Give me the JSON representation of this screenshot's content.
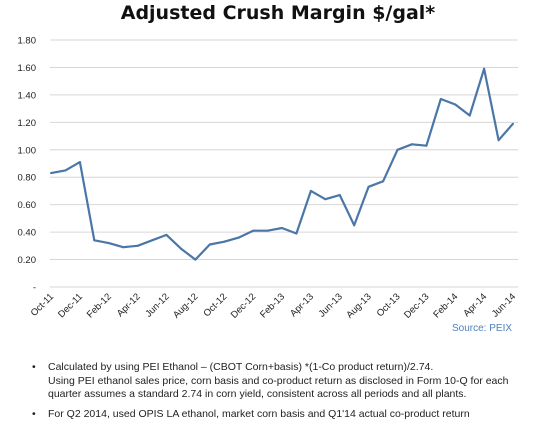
{
  "title": "Adjusted Crush Margin $/gal*",
  "source": "Source: PEIX",
  "footnotes": [
    [
      "Calculated by using PEI Ethanol – (CBOT Corn+basis) *(1-Co product return)/2.74.",
      "Using PEI ethanol sales price, corn basis and co-product return as disclosed in Form 10-Q for each",
      "quarter assumes a standard 2.74 in corn yield, consistent across all periods and all plants."
    ],
    [
      "For Q2 2014, used OPIS LA ethanol, market corn basis and Q1'14 actual co-product return"
    ]
  ],
  "colors": {
    "line": "#4a76a8",
    "grid": "#d6d6d6",
    "source": "#4f81bd"
  },
  "chart_data": {
    "type": "line",
    "title": "Adjusted Crush Margin $/gal*",
    "xlabel": "",
    "ylabel": "",
    "ylim": [
      0,
      1.8
    ],
    "y_ticks": [
      "-",
      "0.20",
      "0.40",
      "0.60",
      "0.80",
      "1.00",
      "1.20",
      "1.40",
      "1.60",
      "1.80"
    ],
    "grid": true,
    "x_tick_labels": [
      "Oct-11",
      "Dec-11",
      "Feb-12",
      "Apr-12",
      "Jun-12",
      "Aug-12",
      "Oct-12",
      "Dec-12",
      "Feb-13",
      "Apr-13",
      "Jun-13",
      "Aug-13",
      "Oct-13",
      "Dec-13",
      "Feb-14",
      "Apr-14",
      "Jun-14"
    ],
    "x": [
      "Oct-11",
      "Nov-11",
      "Dec-11",
      "Jan-12",
      "Feb-12",
      "Mar-12",
      "Apr-12",
      "May-12",
      "Jun-12",
      "Jul-12",
      "Aug-12",
      "Sep-12",
      "Oct-12",
      "Nov-12",
      "Dec-12",
      "Jan-13",
      "Feb-13",
      "Mar-13",
      "Apr-13",
      "May-13",
      "Jun-13",
      "Jul-13",
      "Aug-13",
      "Sep-13",
      "Oct-13",
      "Nov-13",
      "Dec-13",
      "Jan-14",
      "Feb-14",
      "Mar-14",
      "Apr-14",
      "May-14",
      "Jun-14"
    ],
    "series": [
      {
        "values": [
          0.83,
          0.85,
          0.91,
          0.34,
          0.32,
          0.29,
          0.3,
          0.34,
          0.38,
          0.28,
          0.2,
          0.31,
          0.33,
          0.36,
          0.41,
          0.41,
          0.43,
          0.39,
          0.7,
          0.64,
          0.67,
          0.45,
          0.73,
          0.77,
          1.0,
          1.04,
          1.03,
          1.37,
          1.33,
          1.25,
          1.59,
          1.07,
          1.19
        ]
      }
    ]
  }
}
